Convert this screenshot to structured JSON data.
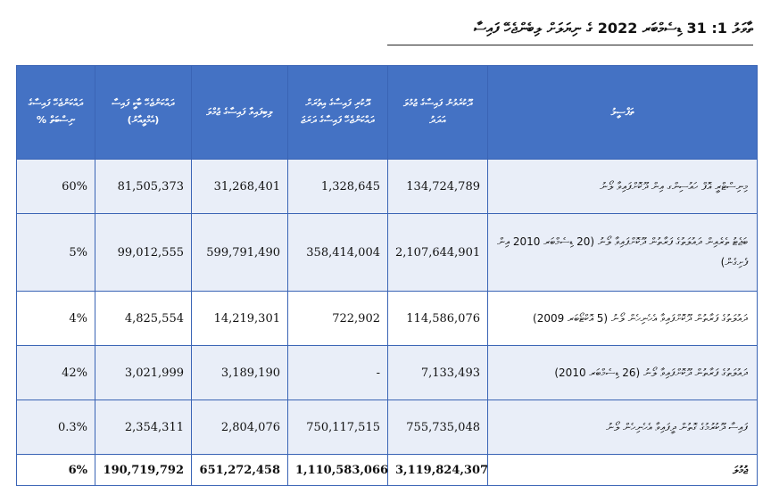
{
  "title": "ތާވަލު 1: 31 ޑިސެމްބަރ 2022 ގެ ނިޔަލަށް ލިބެންޖެހޭ ފައިސާ",
  "headers": {
    "category": "ތަފްސީލު",
    "issued": "ދޫކުރެވުނު ފައިސާގެ ޖުމުލަ އަދަދު",
    "returned_extra": "ދޫކުރި ފައިސާގެ އިތުރަށް ދައްކަންޖެހޭ ފައިސާގެ ދަރަޖަ",
    "received": "ލިބިފައިވާ ފައިސާގެ ޖުމްލަ",
    "balance": "ދައްކަންޖެހޭ ބާކީ ފައިސާ (އެމްވީއާރު)",
    "percent": "ދައްކަންޖެހޭ ފައިސާގެ ނިސްބަތް %"
  },
  "rows": [
    {
      "label": "މިނިސްޓްރީ އޮފް ހައުސިންގ އިން ދޫކޮށްފައިވާ ލޯނު",
      "issued": "134,724,789",
      "extra": "1,328,645",
      "received": "31,268,401",
      "balance": "81,505,373",
      "percent": "60%"
    },
    {
      "label": "ބަޖެޓު ތެރެއިން ދައުލަތުގެ ފަރާތުން ދޫކޮށްފައިވާ ލޯނު (20 ޑިސެމްބަރ 2010 އިން ފެށިގެން)",
      "issued": "2,107,644,901",
      "extra": "358,414,004",
      "received": "599,791,490",
      "balance": "99,012,555",
      "percent": "5%"
    },
    {
      "label": "ދައުލަތުގެ ފަރާތުން ދޫކޮށްފައިވާ އެހެނިހެން ލޯނު (5 އޮކްޓޯބަރ 2009)",
      "issued": "114,586,076",
      "extra": "722,902",
      "received": "14,219,301",
      "balance": "4,825,554",
      "percent": "4%"
    },
    {
      "label": "ދައުލަތުގެ ފަރާތުން ދޫކޮށްފައިވާ ލޯނު (26 ޑިސެމްބަރ 2010)",
      "issued": "7,133,493",
      "extra": "-",
      "received": "3,189,190",
      "balance": "3,021,999",
      "percent": "42%"
    },
    {
      "label": "ފައިސާ ދޫކުރުމުގެ ގޮތުން ދީފައިވާ އެހެނިހެން ލޯނު",
      "issued": "755,735,048",
      "extra": "750,117,515",
      "received": "2,804,076",
      "balance": "2,354,311",
      "percent": "0.3%"
    }
  ],
  "total": {
    "label": "ޖުމުލަ",
    "issued": "3,119,824,307",
    "extra": "1,110,583,066",
    "received": "651,272,458",
    "balance": "190,719,792",
    "percent": "6%"
  }
}
